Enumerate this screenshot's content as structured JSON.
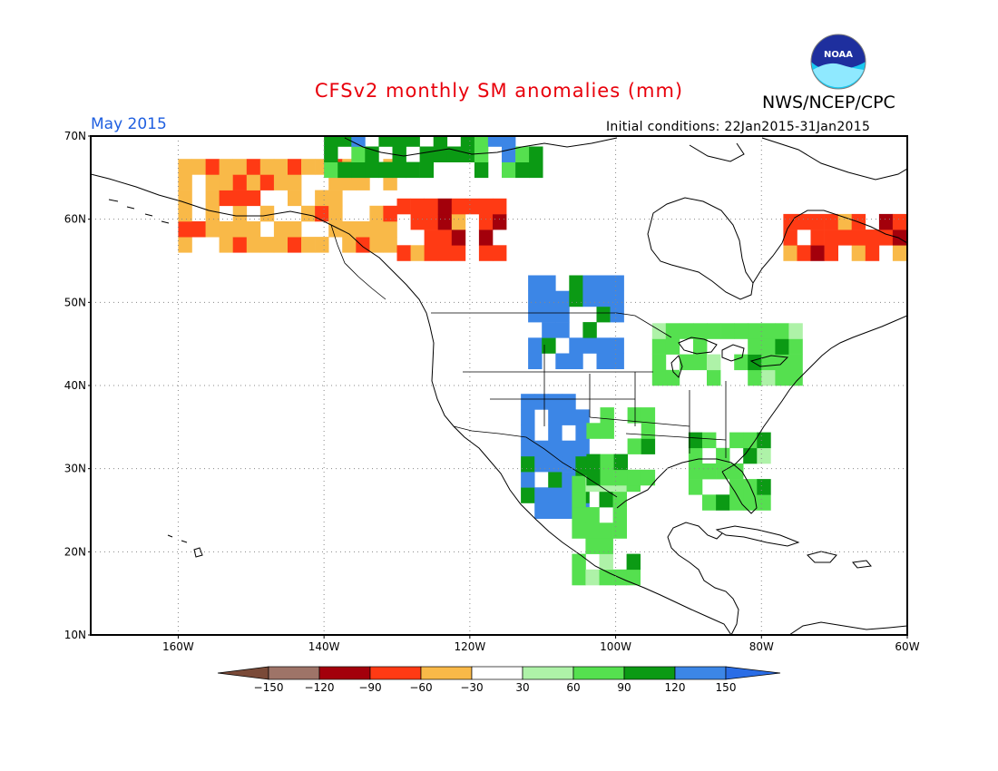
{
  "title": "CFSv2 monthly SM anomalies (mm)",
  "org": "NWS/NCEP/CPC",
  "logo_text": "NOAA",
  "forecast_month": "May 2015",
  "initial_conditions": "Initial conditions: 22Jan2015-31Jan2015",
  "map": {
    "lon_range": [
      -172,
      -60
    ],
    "lat_range": [
      10,
      70
    ],
    "lat_labels": [
      "70N",
      "60N",
      "50N",
      "40N",
      "30N",
      "20N",
      "10N"
    ],
    "lon_labels": [
      "160W",
      "140W",
      "120W",
      "100W",
      "80W",
      "60W"
    ],
    "grid": "dotted",
    "anomaly_regions": [
      {
        "name": "north-plains-wet",
        "category": "120-150",
        "lon": [
          -112,
          -100
        ],
        "lat": [
          42,
          53
        ]
      },
      {
        "name": "southwest-wet",
        "category": "120-150",
        "lon": [
          -113,
          -104
        ],
        "lat": [
          24,
          38
        ]
      },
      {
        "name": "mexico-wet",
        "category": "60-90",
        "lon": [
          -106,
          -98
        ],
        "lat": [
          16,
          28
        ]
      },
      {
        "name": "texas-wet",
        "category": "60-90",
        "lon": [
          -104,
          -96
        ],
        "lat": [
          28,
          36
        ]
      },
      {
        "name": "alaska-dry",
        "category": "-60--30",
        "lon": [
          -160,
          -130
        ],
        "lat": [
          56,
          66
        ]
      },
      {
        "name": "canada-dry",
        "category": "-90--60",
        "lon": [
          -130,
          -115
        ],
        "lat": [
          55,
          62
        ]
      },
      {
        "name": "quebec-dry",
        "category": "-90--60",
        "lon": [
          -77,
          -60
        ],
        "lat": [
          55,
          60
        ]
      },
      {
        "name": "arctic-wet",
        "category": "90-120",
        "lon": [
          -140,
          -110
        ],
        "lat": [
          65,
          70
        ]
      },
      {
        "name": "great-lakes-wet",
        "category": "60-90",
        "lon": [
          -95,
          -75
        ],
        "lat": [
          40,
          47
        ]
      },
      {
        "name": "southeast-wet",
        "category": "60-90",
        "lon": [
          -90,
          -80
        ],
        "lat": [
          25,
          33
        ]
      }
    ]
  },
  "colorbar": {
    "labels": [
      "−150",
      "−120",
      "−90",
      "−60",
      "−30",
      "30",
      "60",
      "90",
      "120",
      "150"
    ],
    "colors": [
      "#7a4a38",
      "#9e7468",
      "#a3000b",
      "#ff3a14",
      "#f9b948",
      "#ffffff",
      "#aef2a8",
      "#55e04f",
      "#0b9a14",
      "#3c86e6",
      "#2a6de6"
    ]
  }
}
